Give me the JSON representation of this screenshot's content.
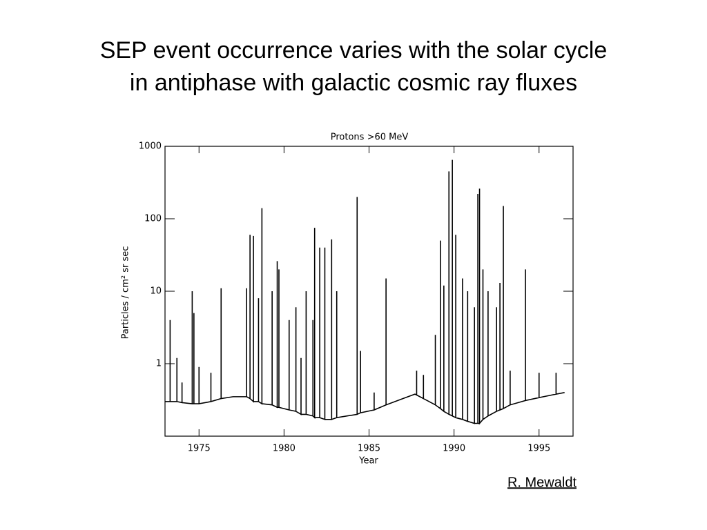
{
  "slide": {
    "title_lines": [
      "SEP event occurrence varies with the solar cycle",
      "in antiphase with galactic cosmic ray fluxes"
    ],
    "credit": "R. Mewaldt"
  },
  "chart_data": {
    "type": "line",
    "title": "Protons >60 MeV",
    "x_label": "Year",
    "y_label": "Particles / cm² sr sec",
    "yscale": "log",
    "xlim": [
      1973,
      1997
    ],
    "ylim": [
      0.1,
      1000
    ],
    "xticks": [
      1975,
      1980,
      1985,
      1990,
      1995
    ],
    "yticks": [
      1,
      10,
      100,
      1000
    ],
    "color": "#000000",
    "x": [
      1973.0,
      1973.3,
      1973.3,
      1973.3,
      1973.7,
      1973.7,
      1973.7,
      1974.0,
      1974.0,
      1974.0,
      1974.6,
      1974.6,
      1974.6,
      1974.7,
      1974.7,
      1974.7,
      1975.0,
      1975.0,
      1975.0,
      1975.7,
      1975.7,
      1975.7,
      1976.3,
      1976.3,
      1976.3,
      1977.0,
      1977.8,
      1977.8,
      1977.8,
      1978.0,
      1978.0,
      1978.0,
      1978.2,
      1978.2,
      1978.2,
      1978.5,
      1978.5,
      1978.5,
      1978.7,
      1978.7,
      1978.7,
      1979.3,
      1979.3,
      1979.3,
      1979.6,
      1979.6,
      1979.6,
      1979.7,
      1979.7,
      1979.7,
      1980.3,
      1980.3,
      1980.3,
      1980.7,
      1980.7,
      1980.7,
      1981.0,
      1981.0,
      1981.0,
      1981.3,
      1981.3,
      1981.3,
      1981.7,
      1981.7,
      1981.7,
      1981.8,
      1981.8,
      1981.8,
      1982.1,
      1982.1,
      1982.1,
      1982.4,
      1982.4,
      1982.4,
      1982.8,
      1982.8,
      1982.8,
      1983.1,
      1983.1,
      1983.1,
      1984.3,
      1984.3,
      1984.3,
      1984.5,
      1984.5,
      1984.5,
      1985.3,
      1985.3,
      1985.3,
      1986.0,
      1986.0,
      1986.0,
      1987.0,
      1987.7,
      1987.8,
      1987.8,
      1987.8,
      1988.2,
      1988.2,
      1988.2,
      1988.9,
      1988.9,
      1988.9,
      1989.2,
      1989.2,
      1989.2,
      1989.4,
      1989.4,
      1989.4,
      1989.7,
      1989.7,
      1989.7,
      1989.9,
      1989.9,
      1989.9,
      1990.1,
      1990.1,
      1990.1,
      1990.5,
      1990.5,
      1990.5,
      1990.8,
      1990.8,
      1990.8,
      1991.2,
      1991.2,
      1991.2,
      1991.4,
      1991.4,
      1991.4,
      1991.5,
      1991.5,
      1991.5,
      1991.7,
      1991.7,
      1991.7,
      1992.0,
      1992.0,
      1992.0,
      1992.5,
      1992.5,
      1992.5,
      1992.7,
      1992.7,
      1992.7,
      1992.9,
      1992.9,
      1992.9,
      1993.3,
      1993.3,
      1993.3,
      1994.2,
      1994.2,
      1994.2,
      1995.0,
      1995.0,
      1995.0,
      1996.0,
      1996.0,
      1996.0,
      1996.5
    ],
    "values": [
      0.3,
      0.3,
      4,
      0.3,
      0.3,
      1.2,
      0.3,
      0.29,
      0.55,
      0.29,
      0.28,
      10,
      0.28,
      0.28,
      5,
      0.28,
      0.28,
      0.9,
      0.28,
      0.3,
      0.75,
      0.3,
      0.33,
      11,
      0.33,
      0.35,
      0.35,
      11,
      0.35,
      0.33,
      60,
      0.33,
      0.3,
      58,
      0.3,
      0.3,
      8,
      0.3,
      0.28,
      140,
      0.28,
      0.27,
      10,
      0.27,
      0.25,
      26,
      0.25,
      0.25,
      20,
      0.25,
      0.23,
      4,
      0.23,
      0.22,
      6,
      0.22,
      0.2,
      1.2,
      0.2,
      0.2,
      10,
      0.2,
      0.19,
      4,
      0.19,
      0.18,
      75,
      0.18,
      0.18,
      40,
      0.18,
      0.17,
      40,
      0.17,
      0.17,
      52,
      0.17,
      0.18,
      10,
      0.18,
      0.2,
      200,
      0.2,
      0.21,
      1.5,
      0.21,
      0.23,
      0.4,
      0.23,
      0.27,
      15,
      0.27,
      0.33,
      0.38,
      0.37,
      0.8,
      0.37,
      0.33,
      0.7,
      0.33,
      0.27,
      2.5,
      0.27,
      0.24,
      50,
      0.24,
      0.22,
      12,
      0.22,
      0.2,
      450,
      0.2,
      0.19,
      650,
      0.19,
      0.18,
      60,
      0.18,
      0.17,
      15,
      0.17,
      0.16,
      10,
      0.16,
      0.15,
      6,
      0.15,
      0.15,
      220,
      0.15,
      0.15,
      260,
      0.15,
      0.17,
      20,
      0.17,
      0.19,
      10,
      0.19,
      0.22,
      6,
      0.22,
      0.23,
      13,
      0.23,
      0.24,
      150,
      0.24,
      0.27,
      0.8,
      0.27,
      0.31,
      20,
      0.31,
      0.34,
      0.75,
      0.34,
      0.38,
      0.75,
      0.38,
      0.4
    ]
  }
}
